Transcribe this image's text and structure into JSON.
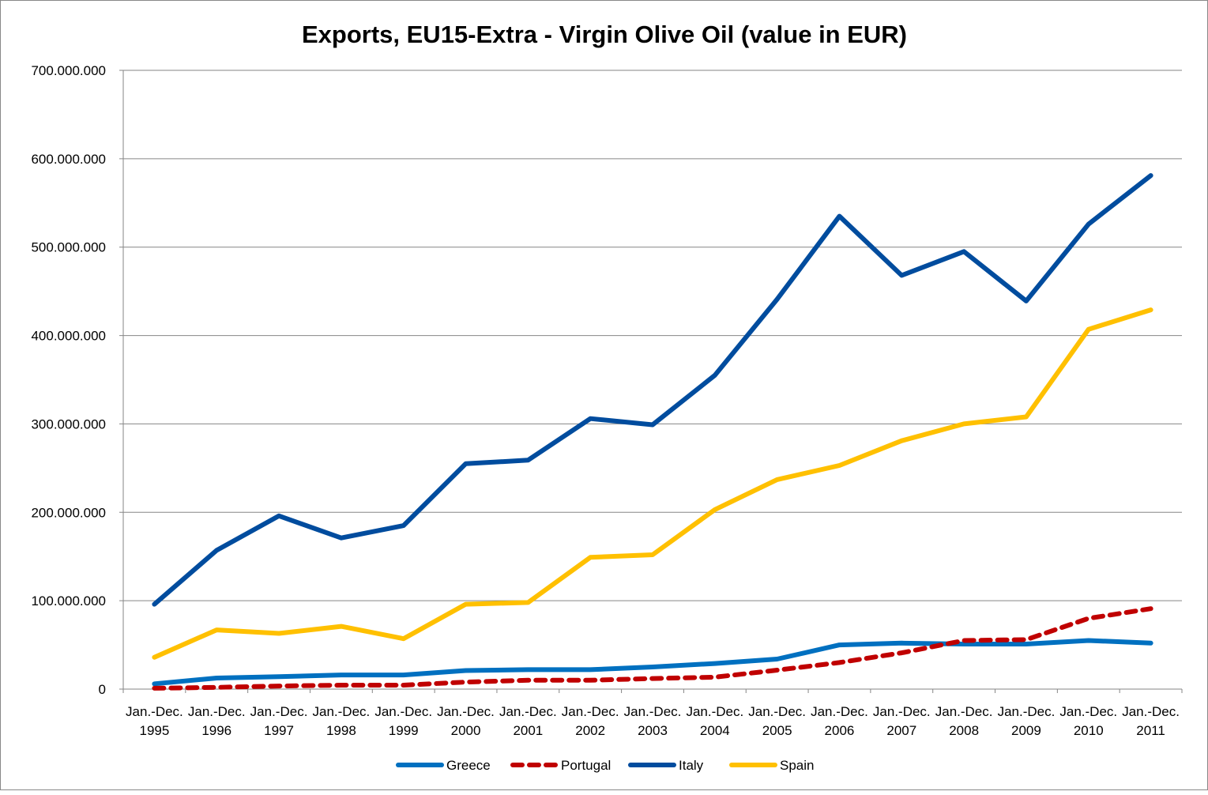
{
  "chart_data": {
    "type": "line",
    "title": "Exports, EU15-Extra - Virgin Olive Oil (value in EUR)",
    "xlabel": "",
    "ylabel": "",
    "ylim": [
      0,
      700000000
    ],
    "yticks": [
      0,
      100000000,
      200000000,
      300000000,
      400000000,
      500000000,
      600000000,
      700000000
    ],
    "ytick_labels": [
      "0",
      "100.000.000",
      "200.000.000",
      "300.000.000",
      "400.000.000",
      "500.000.000",
      "600.000.000",
      "700.000.000"
    ],
    "grid": true,
    "legend": "bottom",
    "categories": [
      [
        "Jan.-Dec.",
        "1995"
      ],
      [
        "Jan.-Dec.",
        "1996"
      ],
      [
        "Jan.-Dec.",
        "1997"
      ],
      [
        "Jan.-Dec.",
        "1998"
      ],
      [
        "Jan.-Dec.",
        "1999"
      ],
      [
        "Jan.-Dec.",
        "2000"
      ],
      [
        "Jan.-Dec.",
        "2001"
      ],
      [
        "Jan.-Dec.",
        "2002"
      ],
      [
        "Jan.-Dec.",
        "2003"
      ],
      [
        "Jan.-Dec.",
        "2004"
      ],
      [
        "Jan.-Dec.",
        "2005"
      ],
      [
        "Jan.-Dec.",
        "2006"
      ],
      [
        "Jan.-Dec.",
        "2007"
      ],
      [
        "Jan.-Dec.",
        "2008"
      ],
      [
        "Jan.-Dec.",
        "2009"
      ],
      [
        "Jan.-Dec.",
        "2010"
      ],
      [
        "Jan.-Dec.",
        "2011"
      ]
    ],
    "series": [
      {
        "name": "Greece",
        "color": "#0070C0",
        "dashed": false,
        "values": [
          6000000,
          12500000,
          14000000,
          16000000,
          16000000,
          21000000,
          22000000,
          22000000,
          25000000,
          29000000,
          34000000,
          50000000,
          52000000,
          51000000,
          51000000,
          55000000,
          52000000
        ]
      },
      {
        "name": "Portugal",
        "color": "#C00000",
        "dashed": true,
        "values": [
          1000000,
          2000000,
          3500000,
          4500000,
          4500000,
          8000000,
          10000000,
          10000000,
          12000000,
          13500000,
          21500000,
          30000000,
          41000000,
          55000000,
          56000000,
          80000000,
          91000000
        ]
      },
      {
        "name": "Italy",
        "color": "#004C9E",
        "dashed": false,
        "values": [
          96000000,
          157000000,
          196000000,
          171000000,
          185000000,
          255000000,
          259000000,
          306000000,
          299000000,
          355000000,
          441000000,
          535000000,
          468000000,
          495000000,
          439000000,
          526000000,
          581000000
        ]
      },
      {
        "name": "Spain",
        "color": "#FFC000",
        "dashed": false,
        "values": [
          36000000,
          67000000,
          63000000,
          71000000,
          57000000,
          96000000,
          98000000,
          149000000,
          152000000,
          203000000,
          237000000,
          253000000,
          281000000,
          300000000,
          308000000,
          407000000,
          429000000
        ]
      }
    ]
  }
}
